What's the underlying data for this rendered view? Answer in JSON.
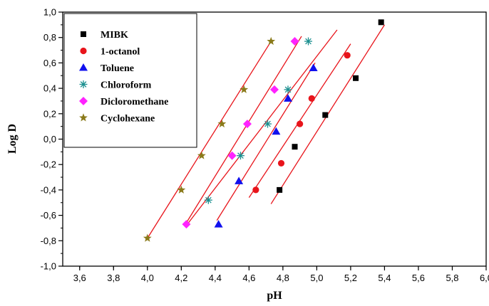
{
  "chart_data": {
    "type": "scatter",
    "xlabel": "pH",
    "ylabel": "Log D",
    "xlim": [
      3.5,
      6.0
    ],
    "ylim": [
      -1.0,
      1.0
    ],
    "x_ticks": [
      "3,6",
      "3,8",
      "4,0",
      "4,2",
      "4,4",
      "4,6",
      "4,8",
      "5,0",
      "5,2",
      "5,4",
      "5,6",
      "5,8",
      "6,0"
    ],
    "y_ticks": [
      "-1,0",
      "-0,8",
      "-0,6",
      "-0,4",
      "-0,2",
      "0,0",
      "0,2",
      "0,4",
      "0,6",
      "0,8",
      "1,0"
    ],
    "grid": false,
    "legend_position": "top-left",
    "fit_line_color": "#e8141b",
    "series": [
      {
        "name": "MIBK",
        "marker": "square",
        "color": "#000000",
        "points": [
          [
            4.78,
            -0.4
          ],
          [
            4.87,
            -0.06
          ],
          [
            5.05,
            0.19
          ],
          [
            5.23,
            0.48
          ],
          [
            5.38,
            0.92
          ]
        ],
        "fit": [
          [
            4.73,
            -0.51
          ],
          [
            5.4,
            0.9
          ]
        ]
      },
      {
        "name": "1-octanol",
        "marker": "circle",
        "color": "#e8141b",
        "points": [
          [
            4.64,
            -0.4
          ],
          [
            4.79,
            -0.19
          ],
          [
            4.9,
            0.12
          ],
          [
            4.97,
            0.32
          ],
          [
            5.18,
            0.66
          ]
        ],
        "fit": [
          [
            4.6,
            -0.46
          ],
          [
            5.2,
            0.75
          ]
        ]
      },
      {
        "name": "Toluene",
        "marker": "triangle",
        "color": "#1010ee",
        "points": [
          [
            4.42,
            -0.67
          ],
          [
            4.54,
            -0.33
          ],
          [
            4.76,
            0.06
          ],
          [
            4.83,
            0.32
          ],
          [
            4.98,
            0.56
          ]
        ],
        "fit": [
          [
            4.41,
            -0.64
          ],
          [
            4.99,
            0.6
          ]
        ]
      },
      {
        "name": "Chloroform",
        "marker": "asterisk",
        "color": "#1a8f8f",
        "points": [
          [
            4.36,
            -0.48
          ],
          [
            4.55,
            -0.13
          ],
          [
            4.71,
            0.12
          ],
          [
            4.83,
            0.39
          ],
          [
            4.95,
            0.77
          ]
        ],
        "fit": [
          [
            4.23,
            -0.68
          ],
          [
            5.12,
            0.86
          ]
        ]
      },
      {
        "name": "Dicloromethane",
        "marker": "diamond",
        "color": "#ff22ff",
        "points": [
          [
            4.23,
            -0.67
          ],
          [
            4.5,
            -0.13
          ],
          [
            4.59,
            0.12
          ],
          [
            4.75,
            0.39
          ],
          [
            4.87,
            0.77
          ]
        ],
        "fit": [
          [
            4.22,
            -0.68
          ],
          [
            4.91,
            0.81
          ]
        ]
      },
      {
        "name": "Cyclohexane",
        "marker": "star",
        "color": "#8a7a1a",
        "points": [
          [
            4.0,
            -0.78
          ],
          [
            4.2,
            -0.4
          ],
          [
            4.32,
            -0.13
          ],
          [
            4.44,
            0.12
          ],
          [
            4.57,
            0.39
          ],
          [
            4.73,
            0.77
          ]
        ],
        "fit": [
          [
            4.0,
            -0.78
          ],
          [
            4.73,
            0.77
          ]
        ]
      }
    ]
  }
}
